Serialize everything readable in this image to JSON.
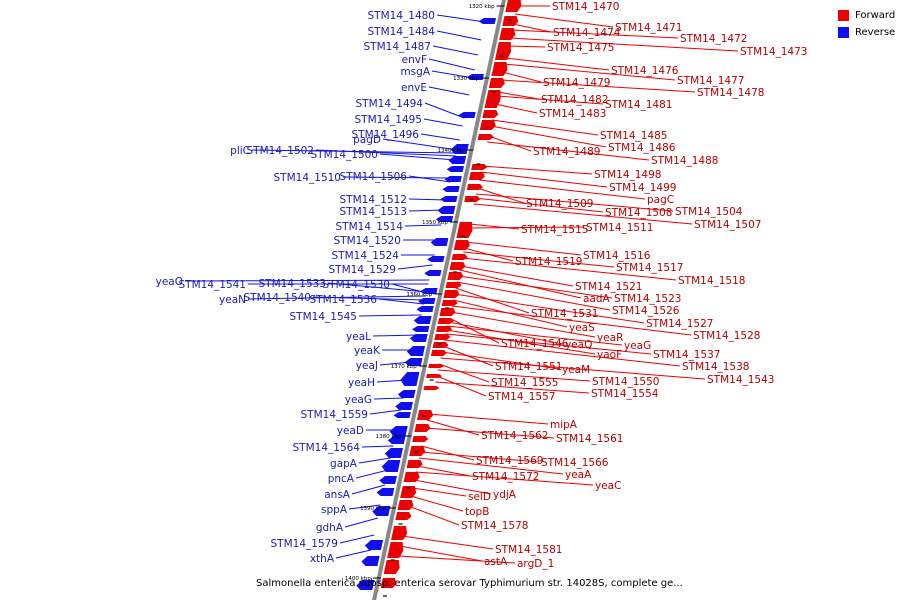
{
  "title": "Salmonella enterica subsp. enterica serovar Typhimurium str. 14028S, complete ge...",
  "legend": [
    {
      "label": "Forward",
      "color": "#ee0000"
    },
    {
      "label": "Reverse",
      "color": "#1010ee"
    }
  ],
  "colors": {
    "forward": "#ee0000",
    "reverse": "#1010ee",
    "backbone": "#888888"
  },
  "kbp_ticks": [
    "1320 kbp",
    "1330 kbp",
    "1340 kbp",
    "1350 kbp",
    "1360 kbp",
    "1370 kbp",
    "1380 kbp",
    "1390 kbp",
    "1400 kbp"
  ],
  "reverse_labels": [
    "STM14_1480",
    "STM14_1484",
    "STM14_1487",
    "envF",
    "msgA",
    "envE",
    "STM14_1494",
    "STM14_1495",
    "STM14_1496",
    "pagD",
    "pliC",
    "STM14_1502",
    "STM14_1500",
    "STM14_1510",
    "STM14_1506",
    "STM14_1512",
    "STM14_1513",
    "STM14_1514",
    "STM14_1520",
    "STM14_1524",
    "STM14_1529",
    "yeaO",
    "STM14_1541",
    "STM14_1533",
    "STM14_1530",
    "yeaN",
    "STM14_1540",
    "STM14_1536",
    "STM14_1545",
    "yeaL",
    "yeaK",
    "yeaJ",
    "yeaH",
    "yeaG",
    "STM14_1559",
    "yeaD",
    "STM14_1564",
    "gapA",
    "pncA",
    "ansA",
    "sppA",
    "gdhA",
    "STM14_1579",
    "xthA"
  ],
  "forward_labels": [
    "STM14_1470",
    "STM14_1471",
    "STM14_1474",
    "STM14_1472",
    "STM14_1473",
    "STM14_1475",
    "STM14_1476",
    "STM14_1477",
    "STM14_1479",
    "STM14_1478",
    "STM14_1482",
    "STM14_1481",
    "STM14_1483",
    "STM14_1485",
    "STM14_1486",
    "STM14_1489",
    "STM14_1488",
    "STM14_1498",
    "STM14_1499",
    "pagC",
    "STM14_1509",
    "STM14_1504",
    "STM14_1508",
    "STM14_1507",
    "STM14_1515",
    "STM14_1511",
    "STM14_1516",
    "STM14_1519",
    "STM14_1517",
    "STM14_1518",
    "STM14_1521",
    "aadA",
    "STM14_1523",
    "STM14_1526",
    "STM14_1531",
    "STM14_1527",
    "yeaS",
    "STM14_1528",
    "yeaR",
    "STM14_1546",
    "yeaQ",
    "yeaG",
    "yaoF",
    "STM14_1537",
    "STM14_1538",
    "STM14_1551",
    "yeaM",
    "STM14_1543",
    "STM14_1555",
    "STM14_1550",
    "STM14_1557",
    "STM14_1554",
    "mipA",
    "STM14_1562",
    "STM14_1561",
    "STM14_1569",
    "STM14_1566",
    "yeaA",
    "STM14_1572",
    "yeaC",
    "ydjA",
    "selD",
    "topB",
    "STM14_1578",
    "STM14_1581",
    "astA",
    "argD_1"
  ]
}
